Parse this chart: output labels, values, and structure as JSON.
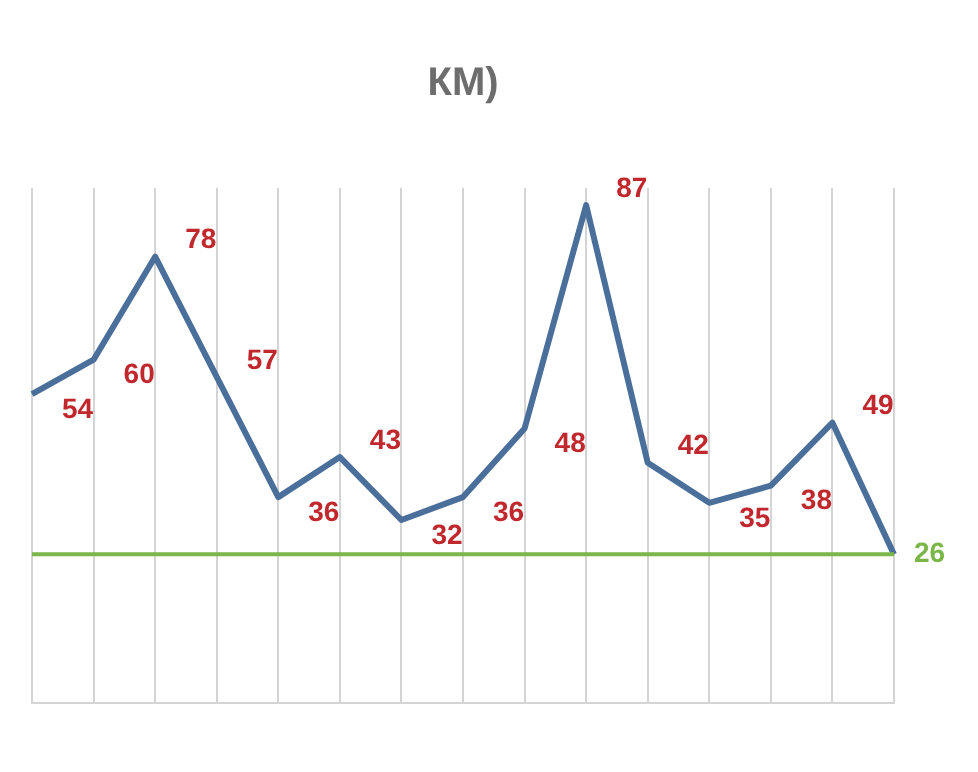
{
  "chart_data": {
    "type": "line",
    "title": "КМ)",
    "categories": [
      null,
      null,
      null,
      null,
      null,
      null,
      null,
      null,
      null,
      null,
      null,
      null,
      null,
      null,
      null
    ],
    "series": [
      {
        "color": "#4a6f9b",
        "values": [
          54,
          60,
          78,
          57,
          36,
          43,
          32,
          36,
          48,
          87,
          42,
          35,
          38,
          49,
          26
        ],
        "value_labels": [
          "54",
          "60",
          "78",
          "57",
          "36",
          "43",
          "32",
          "36",
          "48",
          "87",
          "42",
          "35",
          "38",
          "49",
          null
        ]
      }
    ],
    "ref_lines": [
      {
        "axis": "y",
        "value": 26,
        "label": "26",
        "color": "#7ab648"
      }
    ],
    "grid": "x",
    "legend": false,
    "marker": "none",
    "line_style": "solid"
  }
}
